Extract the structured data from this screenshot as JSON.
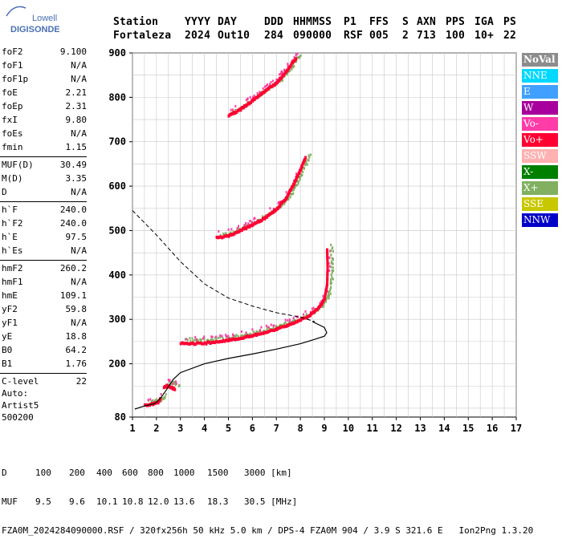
{
  "logo": {
    "line1": "Lowell",
    "line2": "DIGISONDE"
  },
  "header": {
    "labels": [
      "Station",
      "YYYY",
      "DAY",
      "DDD",
      "HHMMSS",
      "P1",
      "FFS",
      "S",
      "AXN",
      "PPS",
      "IGA",
      "PS"
    ],
    "values": [
      "Fortaleza",
      "2024",
      "Out10",
      "284",
      "090000",
      "RSF",
      "005",
      "2",
      "713",
      "100",
      "10+",
      "22"
    ]
  },
  "parameters": [
    [
      {
        "name": "foF2",
        "value": "9.100"
      },
      {
        "name": "foF1",
        "value": "N/A"
      },
      {
        "name": "foF1p",
        "value": "N/A"
      },
      {
        "name": "foE",
        "value": "2.21"
      },
      {
        "name": "foEp",
        "value": "2.31"
      },
      {
        "name": "fxI",
        "value": "9.80"
      },
      {
        "name": "foEs",
        "value": "N/A"
      },
      {
        "name": "fmin",
        "value": "1.15"
      }
    ],
    [
      {
        "name": "MUF(D)",
        "value": "30.49"
      },
      {
        "name": "M(D)",
        "value": "3.35"
      },
      {
        "name": "D",
        "value": "N/A"
      }
    ],
    [
      {
        "name": "h`F",
        "value": "240.0"
      },
      {
        "name": "h`F2",
        "value": "240.0"
      },
      {
        "name": "h`E",
        "value": "97.5"
      },
      {
        "name": "h`Es",
        "value": "N/A"
      }
    ],
    [
      {
        "name": "hmF2",
        "value": "260.2"
      },
      {
        "name": "hmF1",
        "value": "N/A"
      },
      {
        "name": "hmE",
        "value": "109.1"
      },
      {
        "name": "yF2",
        "value": "59.8"
      },
      {
        "name": "yF1",
        "value": "N/A"
      },
      {
        "name": "yE",
        "value": "18.8"
      },
      {
        "name": "B0",
        "value": "64.2"
      },
      {
        "name": "B1",
        "value": "1.76"
      }
    ],
    [
      {
        "name": "C-level",
        "value": "22"
      }
    ]
  ],
  "autoscaling": {
    "line1": "Auto:",
    "line2": "Artist5",
    "line3": "500200"
  },
  "legend": [
    {
      "label": "NoVal",
      "color": "#8c8c8c"
    },
    {
      "label": "NNE",
      "color": "#00d8ff"
    },
    {
      "label": "E",
      "color": "#3fa0ff"
    },
    {
      "label": "W",
      "color": "#a8009c"
    },
    {
      "label": "Vo-",
      "color": "#ff3ca8"
    },
    {
      "label": "Vo+",
      "color": "#ff0033"
    },
    {
      "label": "SSW",
      "color": "#ffb0b0"
    },
    {
      "label": "X-",
      "color": "#008000"
    },
    {
      "label": "X+",
      "color": "#80b060"
    },
    {
      "label": "SSE",
      "color": "#c8c800"
    },
    {
      "label": "NNW",
      "color": "#0000c8"
    }
  ],
  "footer": {
    "distance_label": "D",
    "distances": [
      "100",
      "200",
      "400",
      "600",
      "800",
      "1000",
      "1500",
      "3000 [km]"
    ],
    "muf_label": "MUF",
    "mufs": [
      "9.5",
      "9.6",
      "10.1",
      "10.8",
      "12.0",
      "13.6",
      "18.3",
      "30.5 [MHz]"
    ],
    "file_line": "FZA0M_2024284090000.RSF / 320fx256h 50 kHz 5.0 km / DPS-4 FZA0M 904 / 3.9 S 321.6 E   Ion2Png 1.3.20"
  },
  "chart_data": {
    "type": "scatter",
    "x_unit": "MHz",
    "y_unit": "km",
    "xlim": [
      1,
      17
    ],
    "ylim": [
      80,
      900
    ],
    "x_ticks": [
      1,
      2,
      3,
      4,
      5,
      6,
      7,
      8,
      9,
      10,
      11,
      12,
      13,
      14,
      15,
      16,
      17
    ],
    "y_ticks": [
      80,
      200,
      300,
      400,
      500,
      600,
      700,
      800,
      900
    ],
    "grid": true,
    "trace_colors": {
      "ordinary": "#ff0033",
      "extraordinary": "#80b060",
      "vo_minus": "#ff3ca8"
    },
    "traces": [
      {
        "name": "E-layer",
        "points": [
          [
            1.5,
            108
          ],
          [
            1.7,
            110
          ],
          [
            1.9,
            112
          ],
          [
            2.05,
            115
          ],
          [
            2.15,
            122
          ]
        ]
      },
      {
        "name": "E-cusp",
        "points": [
          [
            2.3,
            150
          ],
          [
            2.45,
            152
          ],
          [
            2.6,
            148
          ],
          [
            2.75,
            145
          ]
        ]
      },
      {
        "name": "F2-1st-hop",
        "points": [
          [
            3.0,
            248
          ],
          [
            3.5,
            247
          ],
          [
            4.0,
            248
          ],
          [
            5.0,
            255
          ],
          [
            6.0,
            265
          ],
          [
            7.0,
            280
          ],
          [
            7.5,
            290
          ],
          [
            8.0,
            300
          ],
          [
            8.4,
            312
          ],
          [
            8.8,
            330
          ],
          [
            9.0,
            350
          ],
          [
            9.1,
            380
          ],
          [
            9.12,
            420
          ],
          [
            9.1,
            460
          ]
        ]
      },
      {
        "name": "F2-2nd-hop",
        "points": [
          [
            4.5,
            485
          ],
          [
            5.0,
            490
          ],
          [
            5.5,
            502
          ],
          [
            6.0,
            515
          ],
          [
            6.5,
            530
          ],
          [
            7.0,
            550
          ],
          [
            7.4,
            575
          ],
          [
            7.7,
            605
          ],
          [
            8.0,
            640
          ],
          [
            8.2,
            665
          ]
        ]
      },
      {
        "name": "F2-3rd-hop",
        "points": [
          [
            5.0,
            760
          ],
          [
            5.5,
            775
          ],
          [
            6.0,
            795
          ],
          [
            6.5,
            815
          ],
          [
            7.0,
            835
          ],
          [
            7.4,
            860
          ],
          [
            7.8,
            890
          ]
        ]
      }
    ],
    "profile_curve": [
      [
        1.1,
        98
      ],
      [
        1.5,
        105
      ],
      [
        1.9,
        110
      ],
      [
        2.0,
        113
      ],
      [
        2.2,
        125
      ],
      [
        2.4,
        140
      ],
      [
        2.7,
        165
      ],
      [
        3.0,
        180
      ],
      [
        4.0,
        200
      ],
      [
        5.0,
        212
      ],
      [
        6.0,
        222
      ],
      [
        7.0,
        233
      ],
      [
        8.0,
        245
      ],
      [
        8.6,
        255
      ],
      [
        9.0,
        262
      ],
      [
        9.1,
        270
      ],
      [
        9.0,
        282
      ],
      [
        8.5,
        295
      ]
    ],
    "topside_curve": [
      [
        1.0,
        545
      ],
      [
        2.0,
        490
      ],
      [
        3.0,
        430
      ],
      [
        4.0,
        380
      ],
      [
        5.0,
        348
      ],
      [
        6.0,
        330
      ],
      [
        7.0,
        315
      ],
      [
        8.0,
        305
      ],
      [
        8.6,
        295
      ]
    ]
  }
}
